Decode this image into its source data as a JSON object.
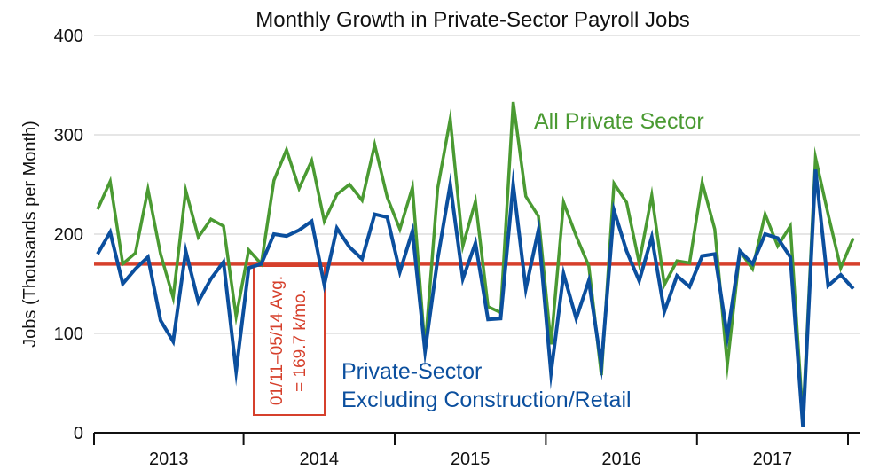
{
  "colors": {
    "all_private": "#4a9a32",
    "excl_construction_retail": "#0b4f9e",
    "average_line": "#d6402c",
    "grid": "#cccccc"
  },
  "chart_data": {
    "type": "line",
    "title": "Monthly Growth in Private-Sector Payroll Jobs",
    "xlabel": "",
    "ylabel": "Jobs (Thousands per Month)",
    "ylim": [
      0,
      400
    ],
    "yticks": [
      "0",
      "100",
      "200",
      "300",
      "400"
    ],
    "grid": "horizontal",
    "x_start": "2013-01",
    "x_end": "2017-09",
    "year_labels": [
      "2013",
      "2014",
      "2015",
      "2016",
      "2017"
    ],
    "series": [
      {
        "name": "All Private Sector",
        "values": [
          225,
          253,
          170,
          181,
          245,
          180,
          136,
          244,
          197,
          215,
          208,
          117,
          184,
          170,
          254,
          285,
          246,
          274,
          213,
          240,
          250,
          234,
          290,
          237,
          205,
          247,
          84,
          246,
          316,
          188,
          233,
          127,
          121,
          333,
          238,
          218,
          89,
          232,
          198,
          168,
          58,
          251,
          232,
          171,
          239,
          149,
          173,
          171,
          252,
          205,
          68,
          183,
          165,
          220,
          188,
          208,
          14,
          277,
          220,
          166,
          196
        ]
      },
      {
        "name": "Private-Sector Excluding Construction/Retail",
        "values": [
          180,
          202,
          150,
          165,
          177,
          113,
          92,
          183,
          132,
          155,
          172,
          62,
          166,
          170,
          200,
          198,
          204,
          213,
          149,
          206,
          187,
          175,
          220,
          217,
          162,
          203,
          82,
          175,
          250,
          155,
          191,
          114,
          115,
          250,
          145,
          204,
          60,
          160,
          115,
          153,
          68,
          224,
          183,
          153,
          197,
          122,
          158,
          147,
          178,
          180,
          97,
          183,
          170,
          200,
          196,
          177,
          6,
          265,
          148,
          159,
          145
        ]
      }
    ],
    "reference_line": {
      "value": 169.7,
      "label_line1": "01/11–05/14 Avg.",
      "label_line2": "= 169.7 k/mo."
    }
  }
}
